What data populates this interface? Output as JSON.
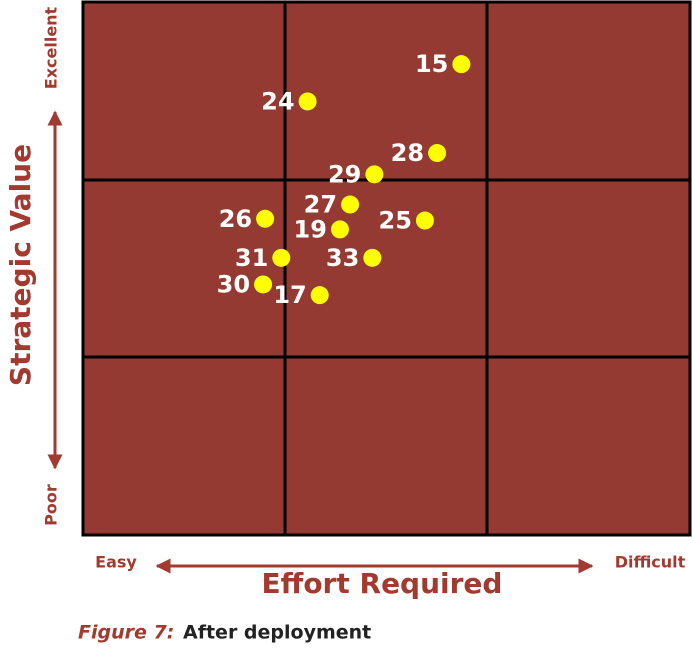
{
  "chart_data": {
    "type": "scatter",
    "xlabel": "Effort Required",
    "ylabel": "Strategic Value",
    "x_low_label": "Easy",
    "x_high_label": "Difficult",
    "y_low_label": "Poor",
    "y_high_label": "Excellent",
    "xlim": [
      0,
      3
    ],
    "ylim": [
      0,
      3
    ],
    "labels": [
      "15",
      "24",
      "28",
      "29",
      "27",
      "26",
      "25",
      "19",
      "31",
      "33",
      "30",
      "17"
    ],
    "x": [
      1.87,
      1.11,
      1.75,
      1.44,
      1.32,
      0.9,
      1.69,
      1.27,
      0.98,
      1.43,
      0.89,
      1.17
    ],
    "y": [
      2.65,
      2.44,
      2.15,
      2.03,
      1.86,
      1.78,
      1.77,
      1.72,
      1.56,
      1.56,
      1.41,
      1.35
    ],
    "color": "#ffff00",
    "background": "#943a33"
  },
  "caption": {
    "figure": "Figure 7:",
    "text": "After deployment"
  }
}
